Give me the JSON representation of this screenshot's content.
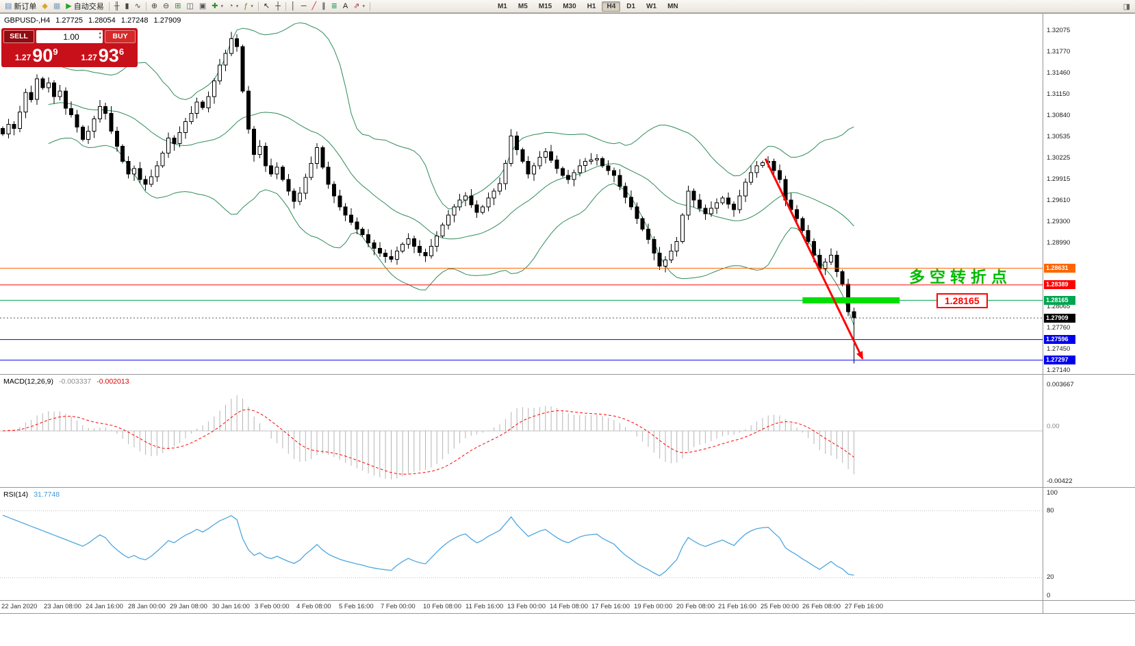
{
  "toolbar": {
    "items": [
      {
        "t": "b",
        "name": "new-order-button",
        "glyph": "▤",
        "gc": "#5b87c5",
        "label": "新订单"
      },
      {
        "t": "b",
        "name": "symbols-button",
        "glyph": "◆",
        "gc": "#d9a62e"
      },
      {
        "t": "b",
        "name": "market-watch-button",
        "glyph": "▦",
        "gc": "#7f9fbf"
      },
      {
        "t": "b",
        "name": "auto-trading-button",
        "glyph": "▶",
        "gc": "#27a427",
        "label": "自动交易"
      },
      {
        "t": "s"
      },
      {
        "t": "b",
        "name": "bar-chart-mode-button",
        "glyph": "╫",
        "gc": "#444"
      },
      {
        "t": "b",
        "name": "candlestick-mode-button",
        "glyph": "▮",
        "gc": "#444"
      },
      {
        "t": "b",
        "name": "line-chart-mode-button",
        "glyph": "∿",
        "gc": "#444"
      },
      {
        "t": "s"
      },
      {
        "t": "b",
        "name": "zoom-in-button",
        "glyph": "⊕",
        "gc": "#444"
      },
      {
        "t": "b",
        "name": "zoom-out-button",
        "glyph": "⊖",
        "gc": "#444"
      },
      {
        "t": "b",
        "name": "tile-windows-button",
        "glyph": "⊞",
        "gc": "#3f7f3f"
      },
      {
        "t": "b",
        "name": "cascade-windows-button",
        "glyph": "◫",
        "gc": "#555"
      },
      {
        "t": "b",
        "name": "auto-arrange-button",
        "glyph": "▣",
        "gc": "#555"
      },
      {
        "t": "b",
        "name": "new-chart-button",
        "glyph": "✚",
        "gc": "#2d8f2d",
        "dd": true
      },
      {
        "t": "b",
        "name": "profiles-button",
        "glyph": "◔",
        "gc": "#555",
        "dd": true
      },
      {
        "t": "b",
        "name": "indicators-button",
        "glyph": "ƒ",
        "gc": "#8a6d3b",
        "dd": true
      },
      {
        "t": "s"
      },
      {
        "t": "b",
        "name": "cursor-button",
        "glyph": "↖",
        "gc": "#222"
      },
      {
        "t": "b",
        "name": "crosshair-button",
        "glyph": "┼",
        "gc": "#222"
      },
      {
        "t": "s"
      },
      {
        "t": "b",
        "name": "vertical-line-button",
        "glyph": "│",
        "gc": "#222"
      },
      {
        "t": "b",
        "name": "horizontal-line-button",
        "glyph": "─",
        "gc": "#222"
      },
      {
        "t": "b",
        "name": "trendline-button",
        "glyph": "╱",
        "gc": "#c03030"
      },
      {
        "t": "b",
        "name": "channel-button",
        "glyph": "∥",
        "gc": "#222"
      },
      {
        "t": "b",
        "name": "fibonacci-button",
        "glyph": "≣",
        "gc": "#2a9a5a"
      },
      {
        "t": "b",
        "name": "text-label-button",
        "glyph": "A",
        "gc": "#222"
      },
      {
        "t": "b",
        "name": "arrows-tool-button",
        "glyph": "⇗",
        "gc": "#b03030",
        "dd": true
      },
      {
        "t": "s"
      },
      {
        "t": "g",
        "w": 175
      }
    ],
    "timeframes": [
      {
        "label": "M1"
      },
      {
        "label": "M5"
      },
      {
        "label": "M15"
      },
      {
        "label": "M30"
      },
      {
        "label": "H1"
      },
      {
        "label": "H4",
        "active": true
      },
      {
        "label": "D1"
      },
      {
        "label": "W1"
      },
      {
        "label": "MN"
      }
    ],
    "overflow_glyph": "◨"
  },
  "chart": {
    "symbol": "GBPUSD-,H4",
    "open": "1.27725",
    "high": "1.28054",
    "low": "1.27248",
    "close": "1.27909",
    "annotation": "多空转折点",
    "annotation_color": "#00bb00",
    "price_tag": "1.28165",
    "axis_prices": [
      "1.32075",
      "1.31770",
      "1.31460",
      "1.31150",
      "1.30840",
      "1.30535",
      "1.30225",
      "1.29915",
      "1.29610",
      "1.29300",
      "1.28990",
      "1.28065",
      "1.27760",
      "1.27450",
      "1.27140"
    ],
    "levels": [
      {
        "label": "1.28631",
        "value": 1.28631,
        "color": "#ff6600",
        "style": "solid"
      },
      {
        "label": "1.28389",
        "value": 1.28389,
        "color": "#ff0000",
        "style": "solid"
      },
      {
        "label": "1.28165",
        "value": 1.28165,
        "color": "#00a550",
        "style": "solid"
      },
      {
        "label": "1.27909",
        "value": 1.27909,
        "color": "#000000",
        "style": "dash"
      },
      {
        "label": "1.27596",
        "value": 1.27596,
        "color": "#0000ee",
        "style": "solid"
      },
      {
        "label": "1.27297",
        "value": 1.27297,
        "color": "#0000ee",
        "style": "solid"
      }
    ],
    "highlight": {
      "price": 1.28165,
      "from_index": 140,
      "to_index": 157,
      "color": "#00e000"
    },
    "arrow": {
      "from_index": 133.5,
      "from_price": 1.3022,
      "to_index": 150.5,
      "to_price": 1.2732,
      "color": "#ff0000"
    }
  },
  "trade_panel": {
    "sell_label": "SELL",
    "buy_label": "BUY",
    "volume": "1.00",
    "bid": {
      "prefix": "1.27",
      "big": "90",
      "sup": "9"
    },
    "ask": {
      "prefix": "1.27",
      "big": "93",
      "sup": "6"
    }
  },
  "macd": {
    "name": "MACD(12,26,9)",
    "value_main": "-0.003337",
    "value_signal": "-0.002013",
    "axis_top": "0.003667",
    "axis_zero": "0.00",
    "axis_bottom": "-0.00422"
  },
  "rsi": {
    "name": "RSI(14)",
    "value": "31.7748",
    "axis": [
      {
        "v": 100,
        "t": "100"
      },
      {
        "v": 80,
        "t": "80"
      },
      {
        "v": 20,
        "t": "20"
      },
      {
        "v": 0,
        "t": "0"
      }
    ],
    "guide_levels": [
      80,
      20
    ]
  },
  "time_axis": {
    "labels": [
      "22 Jan 2020",
      "23 Jan 08:00",
      "24 Jan 16:00",
      "28 Jan 00:00",
      "29 Jan 08:00",
      "30 Jan 16:00",
      "3 Feb 00:00",
      "4 Feb 08:00",
      "5 Feb 16:00",
      "7 Feb 00:00",
      "10 Feb 08:00",
      "11 Feb 16:00",
      "13 Feb 00:00",
      "14 Feb 08:00",
      "17 Feb 16:00",
      "19 Feb 00:00",
      "20 Feb 08:00",
      "21 Feb 16:00",
      "25 Feb 00:00",
      "26 Feb 08:00",
      "27 Feb 16:00"
    ]
  },
  "colors": {
    "bollinger": "#2e8b57",
    "candle_up": "#ffffff",
    "candle_down": "#000000",
    "candle_border": "#000000",
    "macd_hist": "#b4b4b4",
    "macd_signal": "#ff0000",
    "rsi_line": "#4da6e0",
    "panel_border": "#969696",
    "grid_guide": "#c0c0c0"
  },
  "chart_data": {
    "type": "candlestick",
    "symbol": "GBPUSD",
    "timeframe": "H4",
    "ylim": [
      1.27095,
      1.32325
    ],
    "last_candle_low": 1.2725,
    "bollinger": {
      "period": 20,
      "deviation": 2
    },
    "macd_params": {
      "fast": 12,
      "slow": 26,
      "signal": 9
    },
    "rsi": {
      "period": 14,
      "start_value": 76
    },
    "closes": [
      1.3058,
      1.3072,
      1.3066,
      1.309,
      1.3118,
      1.3108,
      1.3138,
      1.3125,
      1.3132,
      1.3112,
      1.312,
      1.3095,
      1.3086,
      1.3068,
      1.305,
      1.3062,
      1.308,
      1.3098,
      1.3088,
      1.3062,
      1.304,
      1.3018,
      1.3,
      1.3008,
      1.2992,
      1.2985,
      1.2996,
      1.3012,
      1.303,
      1.3052,
      1.3044,
      1.306,
      1.3076,
      1.3088,
      1.3104,
      1.3096,
      1.3112,
      1.3135,
      1.3158,
      1.3175,
      1.3196,
      1.3185,
      1.312,
      1.3065,
      1.3028,
      1.304,
      1.3012,
      1.3,
      1.301,
      1.2992,
      1.2975,
      1.296,
      1.2972,
      1.2995,
      1.3015,
      1.3038,
      1.301,
      1.2985,
      1.2968,
      1.2952,
      1.294,
      1.293,
      1.292,
      1.2912,
      1.29,
      1.2892,
      1.2885,
      1.288,
      1.2876,
      1.2888,
      1.2898,
      1.2906,
      1.2895,
      1.2886,
      1.2881,
      1.2895,
      1.291,
      1.2926,
      1.294,
      1.2952,
      1.2962,
      1.2968,
      1.2955,
      1.2944,
      1.2952,
      1.2965,
      1.2975,
      1.2986,
      1.3015,
      1.3055,
      1.3035,
      1.3018,
      1.3,
      1.3012,
      1.3024,
      1.3032,
      1.302,
      1.3008,
      1.2998,
      1.2992,
      1.3002,
      1.3012,
      1.3018,
      1.302,
      1.3022,
      1.3012,
      1.3005,
      1.2998,
      1.2982,
      1.2966,
      1.2952,
      1.2935,
      1.292,
      1.2905,
      1.2885,
      1.2866,
      1.2875,
      1.2888,
      1.2902,
      1.294,
      1.2975,
      1.2962,
      1.295,
      1.2942,
      1.295,
      1.2958,
      1.2965,
      1.2956,
      1.2948,
      1.2968,
      1.2988,
      1.3002,
      1.3012,
      1.3016,
      1.3018,
      1.3005,
      1.2992,
      1.2962,
      1.2948,
      1.2935,
      1.2918,
      1.2902,
      1.2882,
      1.2862,
      1.2872,
      1.2882,
      1.2858,
      1.284,
      1.28,
      1.27909
    ]
  }
}
